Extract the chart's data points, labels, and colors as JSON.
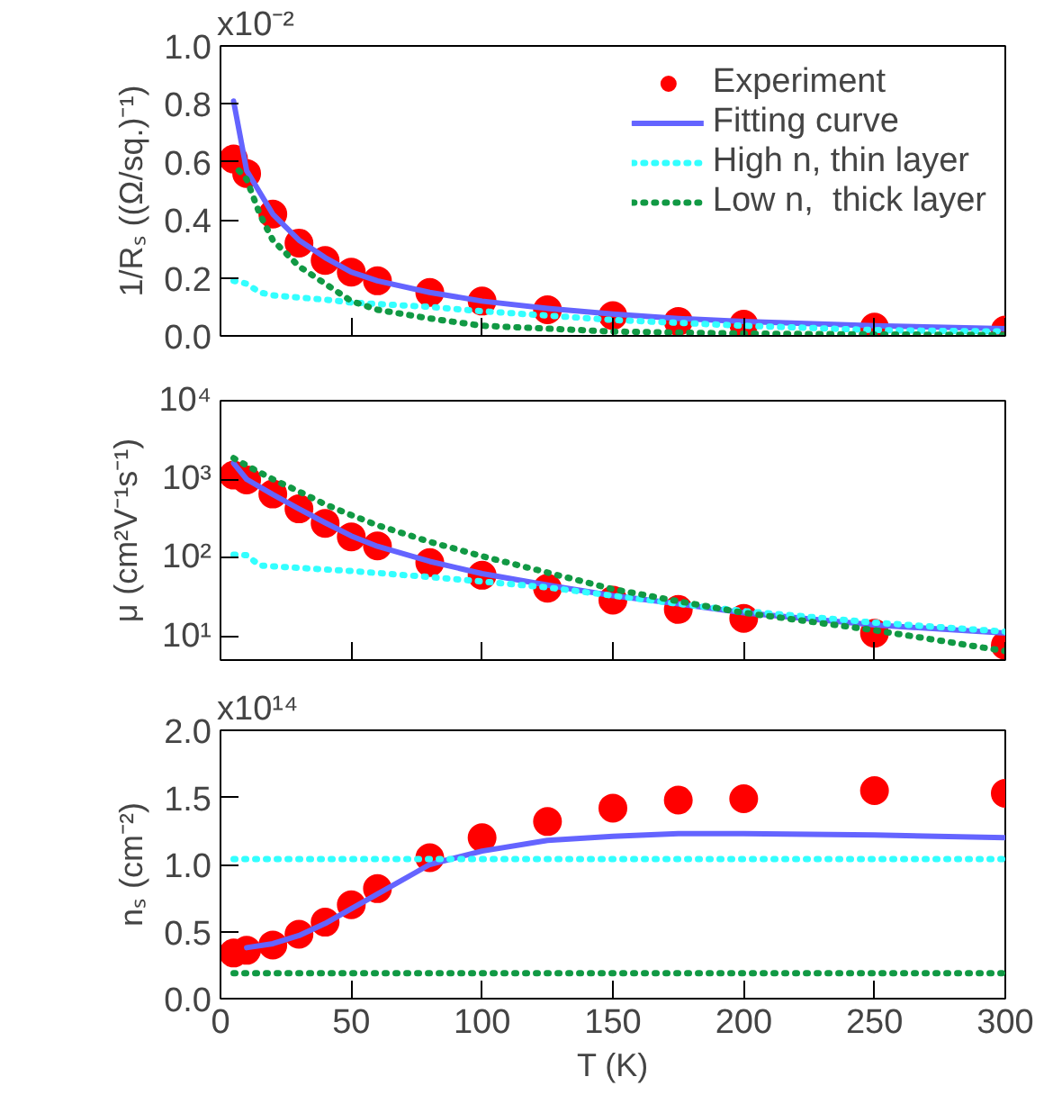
{
  "chart_data": [
    {
      "type": "line",
      "ylabel": "1/Rₛ ((Ω/sq.)⁻¹)",
      "xlim": [
        0,
        300
      ],
      "xticks": [
        {
          "value": 0,
          "label": null
        },
        {
          "value": 50,
          "label": null
        },
        {
          "value": 100,
          "label": null
        },
        {
          "value": 150,
          "label": null
        },
        {
          "value": 200,
          "label": null
        },
        {
          "value": 250,
          "label": null
        },
        {
          "value": 300,
          "label": null
        }
      ],
      "ylim": [
        0,
        1.0
      ],
      "yticks": [
        {
          "value": 0,
          "label": "0.0"
        },
        {
          "value": 0.2,
          "label": "0.2"
        },
        {
          "value": 0.4,
          "label": "0.4"
        },
        {
          "value": 0.6,
          "label": "0.6"
        },
        {
          "value": 0.8,
          "label": "0.8"
        },
        {
          "value": 1.0,
          "label": "1.0"
        }
      ],
      "annotations": [
        "x10⁻²"
      ],
      "tick_labels": "y",
      "legend": "top right",
      "series": [
        {
          "name": "Experiment",
          "type": "scatter",
          "marker": "circle",
          "color": "#ff0000",
          "x": [
            5,
            10,
            20,
            30,
            40,
            50,
            60,
            80,
            100,
            125,
            150,
            175,
            200,
            250,
            300
          ],
          "values": [
            0.61,
            0.56,
            0.42,
            0.32,
            0.26,
            0.22,
            0.19,
            0.15,
            0.12,
            0.09,
            0.07,
            0.05,
            0.04,
            0.03,
            0.02
          ]
        },
        {
          "name": "Fitting curve",
          "line_style": "solid",
          "color": "#6464ff",
          "x": [
            5,
            10,
            20,
            30,
            40,
            50,
            60,
            80,
            100,
            125,
            150,
            175,
            200,
            250,
            300
          ],
          "values": [
            0.81,
            0.57,
            0.42,
            0.33,
            0.27,
            0.22,
            0.19,
            0.15,
            0.12,
            0.095,
            0.075,
            0.06,
            0.05,
            0.035,
            0.025
          ]
        },
        {
          "name": "High n, thin layer",
          "line_style": "dotted",
          "color": "#33ffff",
          "x": [
            5,
            10,
            15,
            20,
            40,
            50,
            80,
            100,
            125,
            150,
            175,
            200,
            250,
            300
          ],
          "values": [
            0.19,
            0.18,
            0.15,
            0.14,
            0.125,
            0.115,
            0.1,
            0.085,
            0.07,
            0.055,
            0.045,
            0.035,
            0.02,
            0.015
          ]
        },
        {
          "name": "Low n,  thick layer",
          "line_style": "dotted",
          "color": "#119944",
          "x": [
            7,
            10,
            15,
            20,
            30,
            40,
            50,
            60,
            80,
            100,
            125,
            150,
            200,
            250,
            300
          ],
          "values": [
            0.57,
            0.54,
            0.42,
            0.33,
            0.24,
            0.18,
            0.12,
            0.09,
            0.06,
            0.035,
            0.025,
            0.015,
            0.008,
            0.005,
            0.003
          ]
        }
      ]
    },
    {
      "type": "line",
      "ylabel": "μ (cm²V⁻¹s⁻¹)",
      "log": "y",
      "xlim": [
        0,
        300
      ],
      "xticks": [
        {
          "value": 0,
          "label": null
        },
        {
          "value": 50,
          "label": null
        },
        {
          "value": 100,
          "label": null
        },
        {
          "value": 150,
          "label": null
        },
        {
          "value": 200,
          "label": null
        },
        {
          "value": 250,
          "label": null
        },
        {
          "value": 300,
          "label": null
        }
      ],
      "ylim": [
        5,
        10000
      ],
      "yticks": [
        {
          "value": 10,
          "label": "10¹"
        },
        {
          "value": 100,
          "label": "10²"
        },
        {
          "value": 1000,
          "label": "10³"
        },
        {
          "value": 10000,
          "label": "10⁴"
        }
      ],
      "tick_labels": "y",
      "series": [
        {
          "type": "scatter",
          "marker": "circle",
          "color": "#ff0000",
          "x": [
            5,
            10,
            20,
            30,
            40,
            50,
            60,
            80,
            100,
            125,
            150,
            175,
            200,
            250,
            300
          ],
          "values": [
            1130,
            980,
            650,
            420,
            275,
            185,
            142,
            87,
            60,
            41,
            29,
            22,
            17,
            11,
            7.7
          ]
        },
        {
          "line_style": "solid",
          "color": "#6464ff",
          "x": [
            5,
            10,
            20,
            30,
            40,
            50,
            60,
            80,
            100,
            125,
            150,
            175,
            200,
            250,
            300
          ],
          "values": [
            1600,
            1000,
            640,
            420,
            280,
            190,
            140,
            90,
            63,
            45,
            33,
            26,
            20,
            14,
            11
          ]
        },
        {
          "line_style": "dotted",
          "color": "#33ffff",
          "x": [
            5,
            10,
            15,
            20,
            50,
            80,
            100,
            125,
            150,
            175,
            200,
            250,
            300
          ],
          "values": [
            110,
            108,
            80,
            78,
            68,
            57,
            50,
            42,
            33,
            26,
            21,
            15,
            11.5
          ]
        },
        {
          "line_style": "dotted",
          "color": "#119944",
          "x": [
            5,
            10,
            20,
            30,
            40,
            50,
            60,
            80,
            100,
            125,
            150,
            175,
            200,
            250,
            300
          ],
          "values": [
            1860,
            1500,
            1000,
            700,
            480,
            350,
            260,
            160,
            105,
            65,
            40,
            28,
            20,
            12,
            6.5
          ]
        }
      ]
    },
    {
      "type": "line",
      "ylabel": "nₛ (cm⁻²)",
      "xlabel": "T (K)",
      "xlim": [
        0,
        300
      ],
      "xticks": [
        0,
        50,
        100,
        150,
        200,
        250,
        300
      ],
      "ylim": [
        0,
        2.0
      ],
      "yticks": [
        {
          "value": 0,
          "label": "0.0"
        },
        {
          "value": 0.5,
          "label": "0.5"
        },
        {
          "value": 1.0,
          "label": "1.0"
        },
        {
          "value": 1.5,
          "label": "1.5"
        },
        {
          "value": 2.0,
          "label": "2.0"
        }
      ],
      "annotations": [
        "x10¹⁴"
      ],
      "series": [
        {
          "type": "scatter",
          "marker": "circle",
          "color": "#ff0000",
          "x": [
            5,
            10,
            20,
            30,
            40,
            50,
            60,
            80,
            100,
            125,
            150,
            175,
            200,
            250,
            300
          ],
          "values": [
            0.34,
            0.36,
            0.4,
            0.48,
            0.57,
            0.7,
            0.82,
            1.05,
            1.2,
            1.32,
            1.42,
            1.48,
            1.49,
            1.55,
            1.53
          ]
        },
        {
          "line_style": "solid",
          "color": "#6464ff",
          "x": [
            10,
            20,
            30,
            40,
            50,
            60,
            80,
            100,
            125,
            150,
            175,
            200,
            250,
            300
          ],
          "values": [
            0.38,
            0.41,
            0.47,
            0.56,
            0.67,
            0.78,
            1.0,
            1.1,
            1.18,
            1.21,
            1.23,
            1.23,
            1.22,
            1.2
          ]
        },
        {
          "line_style": "dotted",
          "color": "#33ffff",
          "x": [
            5,
            300
          ],
          "values": [
            1.04,
            1.04
          ]
        },
        {
          "line_style": "dotted",
          "color": "#119944",
          "x": [
            5,
            300
          ],
          "values": [
            0.19,
            0.19
          ]
        }
      ]
    }
  ]
}
